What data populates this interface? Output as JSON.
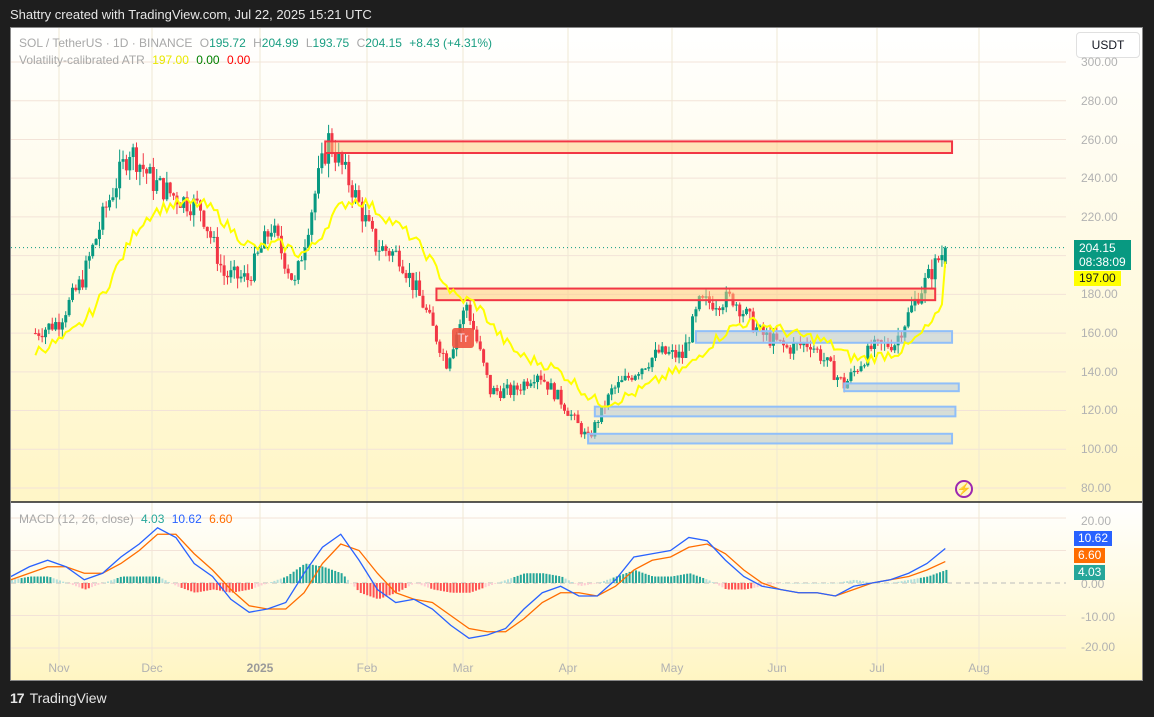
{
  "header": {
    "credit": "Shattry created with TradingView.com, Jul 22, 2025 15:21 UTC"
  },
  "legend": {
    "symbol": "SOL / TetherUS · 1D · BINANCE",
    "o_label": "O",
    "o": "195.72",
    "h_label": "H",
    "h": "204.99",
    "l_label": "L",
    "l": "193.75",
    "c_label": "C",
    "c": "204.15",
    "change": "+8.43 (+4.31%)",
    "indicator_name": "Volatility-calibrated ATR",
    "atr_v1": "197.00",
    "atr_v2": "0.00",
    "atr_v3": "0.00",
    "macd_name": "MACD (12, 26, close)",
    "macd_hist": "4.03",
    "macd_line": "10.62",
    "macd_signal": "6.60"
  },
  "currency_button": "USDT",
  "price_axis": {
    "labels": [
      "300.00",
      "280.00",
      "260.00",
      "240.00",
      "220.00",
      "200.00",
      "180.00",
      "160.00",
      "140.00",
      "120.00",
      "100.00",
      "80.00"
    ],
    "last_price": "204.15",
    "countdown": "08:38:09",
    "atr_value": "197.00"
  },
  "macd_axis": {
    "labels": [
      "20.00",
      "10.00",
      "0.00",
      "-10.00",
      "-20.00"
    ],
    "macd_tag": "10.62",
    "signal_tag": "6.60",
    "hist_tag": "4.03"
  },
  "time_axis": [
    "Nov",
    "Dec",
    "2025",
    "Feb",
    "Mar",
    "Apr",
    "May",
    "Jun",
    "Jul",
    "Aug"
  ],
  "badges": {
    "tr": "Tr",
    "bolt": "⚡"
  },
  "footer": {
    "brand": "TradingView",
    "logo": "17"
  },
  "colors": {
    "up": "#089981",
    "down": "#f23645",
    "atr": "#ffff00",
    "macd": "#2962ff",
    "signal": "#ff6d00",
    "hist_up_strong": "#26a69a",
    "hist_up_weak": "#b2dfdb",
    "hist_down_strong": "#ff5252",
    "hist_down_weak": "#ffcdd2",
    "last_price_bg": "#089981",
    "atr_tag_bg": "#ffff00"
  },
  "chart_data": [
    {
      "type": "candlestick",
      "title": "SOL / TetherUS · 1D · BINANCE",
      "ylabel": "USDT",
      "ylim": [
        75,
        305
      ],
      "x_ticks": [
        "Nov",
        "Dec",
        "2025",
        "Feb",
        "Mar",
        "Apr",
        "May",
        "Jun",
        "Jul",
        "Aug"
      ],
      "y_ticks": [
        80,
        100,
        120,
        140,
        160,
        180,
        200,
        220,
        240,
        260,
        280,
        300
      ],
      "last": {
        "open": 195.72,
        "high": 204.99,
        "low": 193.75,
        "close": 204.15,
        "change": 8.43,
        "change_pct": 4.31
      },
      "close_path_approx": [
        {
          "date": "2024-10-25",
          "close": 160
        },
        {
          "date": "2024-11-01",
          "close": 166
        },
        {
          "date": "2024-11-08",
          "close": 188
        },
        {
          "date": "2024-11-15",
          "close": 225
        },
        {
          "date": "2024-11-22",
          "close": 255
        },
        {
          "date": "2024-11-29",
          "close": 238
        },
        {
          "date": "2024-12-06",
          "close": 230
        },
        {
          "date": "2024-12-13",
          "close": 225
        },
        {
          "date": "2024-12-20",
          "close": 190
        },
        {
          "date": "2024-12-27",
          "close": 188
        },
        {
          "date": "2025-01-03",
          "close": 215
        },
        {
          "date": "2025-01-10",
          "close": 185
        },
        {
          "date": "2025-01-17",
          "close": 240
        },
        {
          "date": "2025-01-20",
          "close": 260
        },
        {
          "date": "2025-01-27",
          "close": 235
        },
        {
          "date": "2025-02-03",
          "close": 205
        },
        {
          "date": "2025-02-10",
          "close": 200
        },
        {
          "date": "2025-02-17",
          "close": 175
        },
        {
          "date": "2025-02-24",
          "close": 145
        },
        {
          "date": "2025-03-02",
          "close": 175
        },
        {
          "date": "2025-03-09",
          "close": 130
        },
        {
          "date": "2025-03-16",
          "close": 130
        },
        {
          "date": "2025-03-23",
          "close": 140
        },
        {
          "date": "2025-03-30",
          "close": 125
        },
        {
          "date": "2025-04-07",
          "close": 105
        },
        {
          "date": "2025-04-14",
          "close": 130
        },
        {
          "date": "2025-04-21",
          "close": 140
        },
        {
          "date": "2025-04-28",
          "close": 150
        },
        {
          "date": "2025-05-05",
          "close": 148
        },
        {
          "date": "2025-05-10",
          "close": 175
        },
        {
          "date": "2025-05-20",
          "close": 178
        },
        {
          "date": "2025-05-28",
          "close": 160
        },
        {
          "date": "2025-06-05",
          "close": 152
        },
        {
          "date": "2025-06-12",
          "close": 155
        },
        {
          "date": "2025-06-22",
          "close": 133
        },
        {
          "date": "2025-06-30",
          "close": 152
        },
        {
          "date": "2025-07-07",
          "close": 155
        },
        {
          "date": "2025-07-14",
          "close": 180
        },
        {
          "date": "2025-07-22",
          "close": 204.15
        }
      ],
      "zones": [
        {
          "kind": "resistance",
          "top": 259,
          "bottom": 253,
          "from": "2025-01-19",
          "to": "2025-07-24"
        },
        {
          "kind": "resistance",
          "top": 183,
          "bottom": 177,
          "from": "2025-02-21",
          "to": "2025-07-19"
        },
        {
          "kind": "support",
          "top": 161,
          "bottom": 155,
          "from": "2025-05-09",
          "to": "2025-07-24"
        },
        {
          "kind": "support",
          "top": 134,
          "bottom": 130,
          "from": "2025-06-22",
          "to": "2025-07-26"
        },
        {
          "kind": "support",
          "top": 122,
          "bottom": 117,
          "from": "2025-04-09",
          "to": "2025-07-25"
        },
        {
          "kind": "support",
          "top": 108,
          "bottom": 103,
          "from": "2025-04-07",
          "to": "2025-07-24"
        }
      ],
      "series": [
        {
          "name": "Volatility-calibrated ATR",
          "color": "#ffff00",
          "last": 197.0
        }
      ]
    },
    {
      "type": "line",
      "title": "MACD (12, 26, close)",
      "ylim": [
        -25,
        25
      ],
      "y_ticks": [
        -20,
        -10,
        0,
        10,
        20
      ],
      "series": [
        {
          "name": "MACD",
          "color": "#2962ff",
          "last": 10.62,
          "values_approx": [
            2,
            5,
            7,
            5,
            1,
            3,
            8,
            12,
            17,
            14,
            6,
            2,
            -5,
            -9,
            -8,
            -6,
            3,
            11,
            15,
            7,
            -2,
            -6,
            -5,
            -8,
            -13,
            -17,
            -16,
            -14,
            -8,
            -3,
            -1,
            -4,
            -4,
            1,
            8,
            9,
            10,
            14,
            13,
            7,
            2,
            -1,
            -2,
            -3,
            -3,
            -4,
            -1,
            0,
            1,
            3,
            6,
            10.62
          ]
        },
        {
          "name": "Signal",
          "color": "#ff6d00",
          "last": 6.6,
          "values_approx": [
            1,
            3,
            5,
            5,
            3,
            3,
            6,
            10,
            15,
            15,
            9,
            4,
            -2,
            -7,
            -8,
            -8,
            -3,
            6,
            12,
            10,
            3,
            -3,
            -5,
            -6,
            -10,
            -14,
            -15,
            -15,
            -11,
            -6,
            -3,
            -3,
            -4,
            -1,
            4,
            7,
            8,
            11,
            12,
            9,
            4,
            0,
            -2,
            -3,
            -3,
            -4,
            -2,
            0,
            1,
            2,
            4,
            6.6
          ]
        },
        {
          "name": "Histogram",
          "last": 4.03
        }
      ]
    }
  ]
}
